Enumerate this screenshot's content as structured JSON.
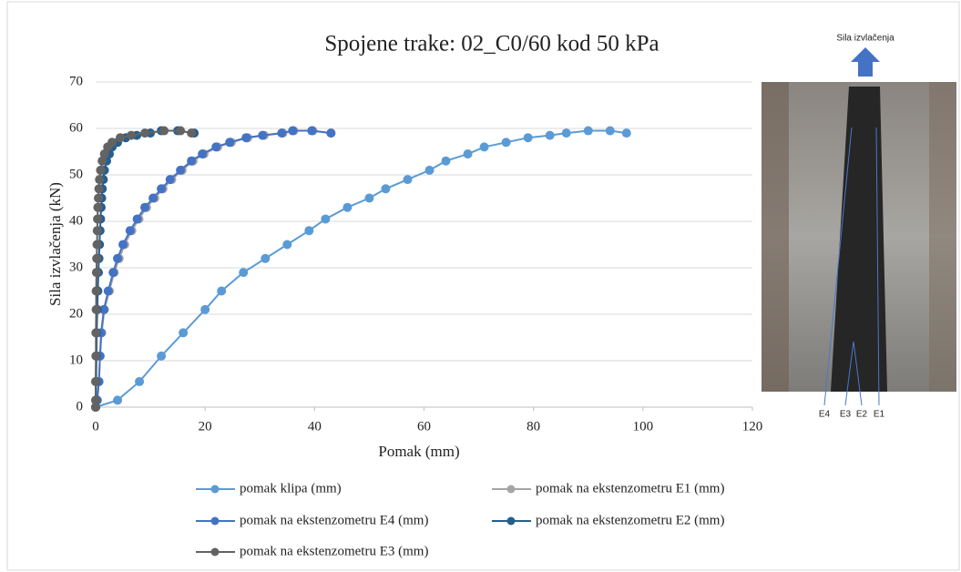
{
  "chart_data": {
    "type": "line",
    "title": "Spojene trake: 02_C0/60 kod 50 kPa",
    "x_label": "Pomak (mm)",
    "y_label": "Sila izvlačenja (kN)",
    "xlim": [
      0,
      120
    ],
    "xticks": [
      0,
      20,
      40,
      60,
      80,
      100,
      120
    ],
    "ylim": [
      0,
      70
    ],
    "yticks": [
      0,
      10,
      20,
      30,
      40,
      50,
      60,
      70
    ],
    "grid": true,
    "series": [
      {
        "name": "pomak klipa (mm)",
        "color": "#5b9bd5",
        "x": [
          0,
          4,
          8,
          12,
          16,
          20,
          23,
          27,
          31,
          35,
          39,
          42,
          46,
          50,
          53,
          57,
          61,
          64,
          68,
          71,
          75,
          79,
          83,
          86,
          90,
          94,
          97
        ],
        "values": [
          0,
          1.5,
          5.5,
          11,
          16,
          21,
          25,
          29,
          32,
          35,
          38,
          40.5,
          43,
          45,
          47,
          49,
          51,
          53,
          54.5,
          56,
          57,
          58,
          58.5,
          59,
          59.5,
          59.5,
          59
        ]
      },
      {
        "name": "pomak na ekstenzometru E1 (mm)",
        "color": "#a5a5a5",
        "x": [
          0,
          0.3,
          0.6,
          0.8,
          1.1,
          1.6,
          2.5,
          3.4,
          4.3,
          5.3,
          6.6,
          7.9,
          9.3,
          10.8,
          12.3,
          13.9,
          15.8,
          17.8,
          19.8,
          22.3,
          24.8,
          27.8,
          30.8,
          34.2,
          36.2,
          39.7,
          43
        ],
        "values": [
          0,
          1.5,
          5.5,
          11,
          16,
          21,
          25,
          29,
          32,
          35,
          38,
          40.5,
          43,
          45,
          47,
          49,
          51,
          53,
          54.5,
          56,
          57,
          58,
          58.5,
          59,
          59.5,
          59.5,
          59
        ]
      },
      {
        "name": "pomak na ekstenzometru E4 (mm)",
        "color": "#4472c4",
        "x": [
          0,
          0.3,
          0.6,
          0.8,
          1,
          1.5,
          2.3,
          3.2,
          4,
          5,
          6.3,
          7.6,
          9,
          10.5,
          12,
          13.6,
          15.5,
          17.5,
          19.5,
          22,
          24.5,
          27.5,
          30.5,
          34,
          36,
          39.5,
          43
        ],
        "values": [
          0,
          1.5,
          5.5,
          11,
          16,
          21,
          25,
          29,
          32,
          35,
          38,
          40.5,
          43,
          45,
          47,
          49,
          51,
          53,
          54.5,
          56,
          57,
          58,
          58.5,
          59,
          59.5,
          59.5,
          59
        ]
      },
      {
        "name": "pomak na ekstenzometru E2 (mm)",
        "color": "#255e91",
        "x": [
          0,
          0.05,
          0.1,
          0.15,
          0.2,
          0.3,
          0.4,
          0.5,
          0.6,
          0.7,
          0.8,
          0.9,
          1,
          1.1,
          1.2,
          1.4,
          1.6,
          2,
          2.5,
          3,
          4,
          5.5,
          7.5,
          10,
          12,
          15,
          18
        ],
        "values": [
          0,
          1.5,
          5.5,
          11,
          16,
          21,
          25,
          29,
          32,
          35,
          38,
          40.5,
          43,
          45,
          47,
          49,
          51,
          53,
          54.5,
          56,
          57,
          58,
          58.5,
          59,
          59.5,
          59.5,
          59
        ]
      },
      {
        "name": "pomak na ekstenzometru E3 (mm)",
        "color": "#636363",
        "x": [
          0,
          0,
          0,
          0.05,
          0.05,
          0.1,
          0.1,
          0.15,
          0.2,
          0.25,
          0.3,
          0.35,
          0.4,
          0.5,
          0.6,
          0.7,
          0.9,
          1.2,
          1.6,
          2.2,
          3,
          4.5,
          6.5,
          9,
          12.5,
          15.5,
          17.5
        ],
        "values": [
          0,
          1.5,
          5.5,
          11,
          16,
          21,
          25,
          29,
          32,
          35,
          38,
          40.5,
          43,
          45,
          47,
          49,
          51,
          53,
          54.5,
          56,
          57,
          58,
          58.5,
          59,
          59.5,
          59.5,
          59
        ]
      }
    ],
    "inset": {
      "title": "Sila izvlačenja",
      "labels": [
        "E4",
        "E3",
        "E2",
        "E1"
      ]
    }
  }
}
